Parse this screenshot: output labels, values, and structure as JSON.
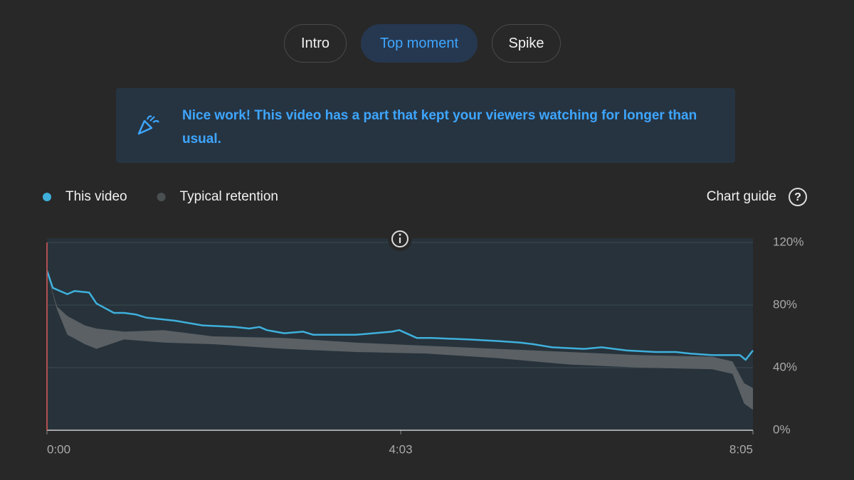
{
  "tabs": [
    {
      "label": "Intro"
    },
    {
      "label": "Top moment"
    },
    {
      "label": "Spike"
    }
  ],
  "banner": {
    "text": "Nice work! This video has a part that kept your viewers watching for longer than usual."
  },
  "chart_guide": "Chart guide",
  "chart_data": {
    "type": "line",
    "xlim": [
      0,
      485
    ],
    "xticks": [
      {
        "value": 0,
        "label": "0:00"
      },
      {
        "value": 243,
        "label": "4:03"
      },
      {
        "value": 485,
        "label": "8:05"
      }
    ],
    "ylim": [
      0,
      120
    ],
    "yticks": [
      {
        "value": 0,
        "label": "0%"
      },
      {
        "value": 40,
        "label": "40%"
      },
      {
        "value": 80,
        "label": "80%"
      },
      {
        "value": 120,
        "label": "120%"
      }
    ],
    "grid": true,
    "series": [
      {
        "name": "This video",
        "color": "#3fb0dc",
        "x": [
          0,
          4,
          14,
          19,
          29,
          34,
          46,
          53,
          61,
          68,
          88,
          107,
          129,
          139,
          146,
          151,
          163,
          176,
          183,
          202,
          212,
          237,
          242,
          254,
          264,
          290,
          310,
          325,
          334,
          347,
          369,
          381,
          398,
          418,
          432,
          442,
          457,
          476,
          480,
          485
        ],
        "values": [
          102,
          91,
          87,
          89,
          88,
          81,
          75,
          75,
          74,
          72,
          70,
          67,
          66,
          65,
          66,
          64,
          62,
          63,
          61,
          61,
          61,
          63,
          64,
          59,
          59,
          58,
          57,
          56,
          55,
          53,
          52,
          53,
          51,
          50,
          50,
          49,
          48,
          48,
          45,
          51
        ]
      },
      {
        "name": "Typical retention",
        "color": "#5a6064",
        "x": [
          0,
          7,
          14,
          26,
          34,
          53,
          80,
          114,
          163,
          212,
          261,
          310,
          359,
          408,
          457,
          471,
          479,
          485
        ],
        "high": [
          100,
          79,
          73,
          67,
          65,
          63,
          64,
          60,
          59,
          56,
          54,
          52,
          50,
          48,
          47,
          44,
          30,
          27
        ],
        "low": [
          100,
          77,
          61,
          55,
          52,
          58,
          56,
          55,
          52,
          50,
          49,
          46,
          42,
          40,
          39,
          36,
          17,
          13
        ]
      }
    ]
  }
}
